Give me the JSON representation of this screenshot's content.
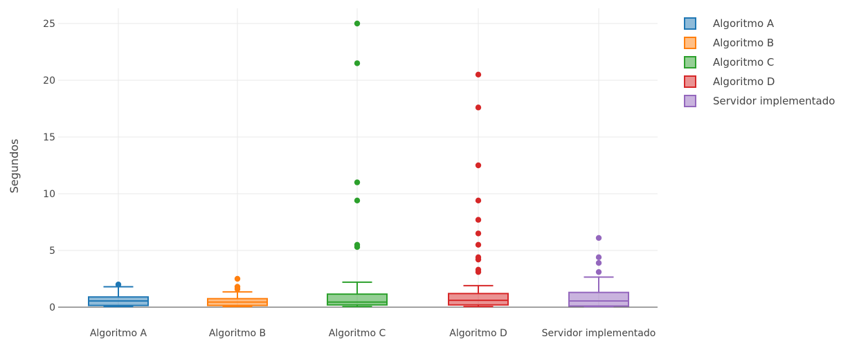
{
  "chart_data": {
    "type": "box",
    "ylabel": "Segundos",
    "ylim": [
      0,
      26
    ],
    "yticks": [
      0,
      5,
      10,
      15,
      20,
      25
    ],
    "grid": true,
    "legend_position": "top-right",
    "series": [
      {
        "name": "Algoritmo A",
        "category": "Algoritmo A",
        "color": "#1f77b4",
        "fill": "rgba(31,119,180,0.5)",
        "min": 0.05,
        "q1": 0.15,
        "median": 0.55,
        "q3": 0.9,
        "max": 1.8,
        "outliers": [
          2.0
        ]
      },
      {
        "name": "Algoritmo B",
        "category": "Algoritmo B",
        "color": "#ff7f0e",
        "fill": "rgba(255,127,14,0.5)",
        "min": 0.05,
        "q1": 0.15,
        "median": 0.45,
        "q3": 0.75,
        "max": 1.35,
        "outliers": [
          1.6,
          1.8,
          2.5
        ]
      },
      {
        "name": "Algoritmo C",
        "category": "Algoritmo C",
        "color": "#2ca02c",
        "fill": "rgba(44,160,44,0.5)",
        "min": 0.05,
        "q1": 0.2,
        "median": 0.45,
        "q3": 1.15,
        "max": 2.2,
        "outliers": [
          5.3,
          5.5,
          9.4,
          11.0,
          21.5,
          25.0
        ]
      },
      {
        "name": "Algoritmo D",
        "category": "Algoritmo D",
        "color": "#d62728",
        "fill": "rgba(214,39,40,0.5)",
        "min": 0.05,
        "q1": 0.2,
        "median": 0.6,
        "q3": 1.2,
        "max": 1.9,
        "outliers": [
          3.1,
          3.3,
          4.2,
          4.4,
          5.5,
          6.5,
          7.7,
          9.4,
          12.5,
          17.6,
          20.5
        ]
      },
      {
        "name": "Servidor implementado",
        "category": "Servidor implementado",
        "color": "#9467bd",
        "fill": "rgba(148,103,189,0.5)",
        "min": 0.05,
        "q1": 0.1,
        "median": 0.55,
        "q3": 1.3,
        "max": 2.65,
        "outliers": [
          3.1,
          3.9,
          4.4,
          6.1
        ]
      }
    ]
  }
}
